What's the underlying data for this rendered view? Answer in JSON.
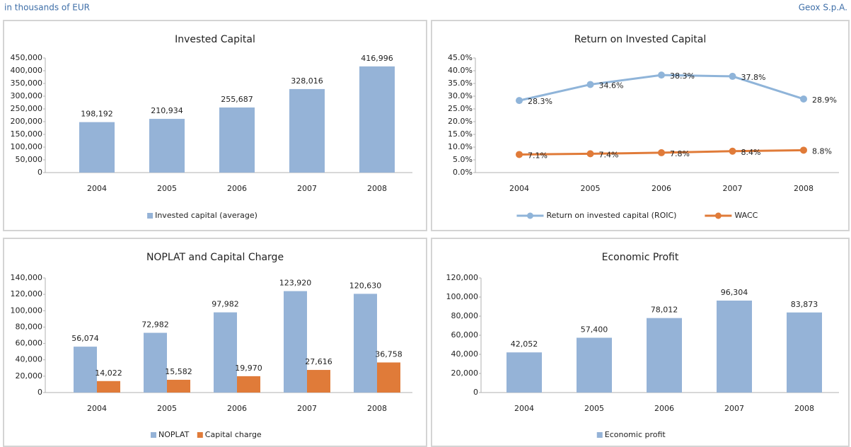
{
  "header": {
    "left": "in thousands of EUR",
    "right": "Geox S.p.A."
  },
  "chart_data": [
    {
      "type": "bar",
      "title": "Invested Capital",
      "categories": [
        "2004",
        "2005",
        "2006",
        "2007",
        "2008"
      ],
      "series": [
        {
          "name": "Invested capital (average)",
          "color": "#95b3d7",
          "values": [
            198192,
            210934,
            255687,
            328016,
            416996
          ],
          "value_labels": [
            "198,192",
            "210,934",
            "255,687",
            "328,016",
            "416,996"
          ]
        }
      ],
      "ylim": [
        0,
        450000
      ],
      "yticks": [
        0,
        {
          "value": 50000,
          "label": "50,000"
        },
        {
          "value": 100000,
          "label": "100,000"
        },
        {
          "value": 150000,
          "label": "150,000"
        },
        {
          "value": 200000,
          "label": "200,000"
        },
        {
          "value": 250000,
          "label": "250,000"
        },
        {
          "value": 300000,
          "label": "300,000"
        },
        {
          "value": 350000,
          "label": "350,000"
        },
        {
          "value": 400000,
          "label": "400,000"
        },
        {
          "value": 450000,
          "label": "450,000"
        }
      ],
      "grid": false,
      "legend": "bottom"
    },
    {
      "type": "line",
      "title": "Return on Invested Capital",
      "categories": [
        "2004",
        "2005",
        "2006",
        "2007",
        "2008"
      ],
      "series": [
        {
          "name": "Return on invested capital (ROIC)",
          "color": "#8fb4d9",
          "values": [
            28.3,
            34.6,
            38.3,
            37.8,
            28.9
          ],
          "value_labels": [
            "28.3%",
            "34.6%",
            "38.3%",
            "37.8%",
            "28.9%"
          ]
        },
        {
          "name": "WACC",
          "color": "#e07b39",
          "values": [
            7.1,
            7.4,
            7.8,
            8.4,
            8.8
          ],
          "value_labels": [
            "7.1%",
            "7.4%",
            "7.8%",
            "8.4%",
            "8.8%"
          ]
        }
      ],
      "ylim": [
        0,
        45
      ],
      "yticks": [
        {
          "value": 0,
          "label": "0.0%"
        },
        {
          "value": 5,
          "label": "5.0%"
        },
        {
          "value": 10,
          "label": "10.0%"
        },
        {
          "value": 15,
          "label": "15.0%"
        },
        {
          "value": 20,
          "label": "20.0%"
        },
        {
          "value": 25,
          "label": "25.0%"
        },
        {
          "value": 30,
          "label": "30.0%"
        },
        {
          "value": 35,
          "label": "35.0%"
        },
        {
          "value": 40,
          "label": "40.0%"
        },
        {
          "value": 45,
          "label": "45.0%"
        }
      ],
      "grid": false,
      "legend": "bottom"
    },
    {
      "type": "bar",
      "title": "NOPLAT and Capital Charge",
      "categories": [
        "2004",
        "2005",
        "2006",
        "2007",
        "2008"
      ],
      "series": [
        {
          "name": "NOPLAT",
          "color": "#95b3d7",
          "values": [
            56074,
            72982,
            97982,
            123920,
            120630
          ],
          "value_labels": [
            "56,074",
            "72,982",
            "97,982",
            "123,920",
            "120,630"
          ]
        },
        {
          "name": "Capital charge",
          "color": "#e07b39",
          "values": [
            14022,
            15582,
            19970,
            27616,
            36758
          ],
          "value_labels": [
            "14,022",
            "15,582",
            "19,970",
            "27,616",
            "36,758"
          ]
        }
      ],
      "ylim": [
        0,
        140000
      ],
      "yticks": [
        0,
        {
          "value": 20000,
          "label": "20,000"
        },
        {
          "value": 40000,
          "label": "40,000"
        },
        {
          "value": 60000,
          "label": "60,000"
        },
        {
          "value": 80000,
          "label": "80,000"
        },
        {
          "value": 100000,
          "label": "100,000"
        },
        {
          "value": 120000,
          "label": "120,000"
        },
        {
          "value": 140000,
          "label": "140,000"
        }
      ],
      "grid": false,
      "legend": "bottom"
    },
    {
      "type": "bar",
      "title": "Economic Profit",
      "categories": [
        "2004",
        "2005",
        "2006",
        "2007",
        "2008"
      ],
      "series": [
        {
          "name": "Economic profit",
          "color": "#95b3d7",
          "values": [
            42052,
            57400,
            78012,
            96304,
            83873
          ],
          "value_labels": [
            "42,052",
            "57,400",
            "78,012",
            "96,304",
            "83,873"
          ]
        }
      ],
      "ylim": [
        0,
        120000
      ],
      "yticks": [
        0,
        {
          "value": 20000,
          "label": "20,000"
        },
        {
          "value": 40000,
          "label": "40,000"
        },
        {
          "value": 60000,
          "label": "60,000"
        },
        {
          "value": 80000,
          "label": "80,000"
        },
        {
          "value": 100000,
          "label": "100,000"
        },
        {
          "value": 120000,
          "label": "120,000"
        }
      ],
      "grid": false,
      "legend": "bottom"
    }
  ]
}
